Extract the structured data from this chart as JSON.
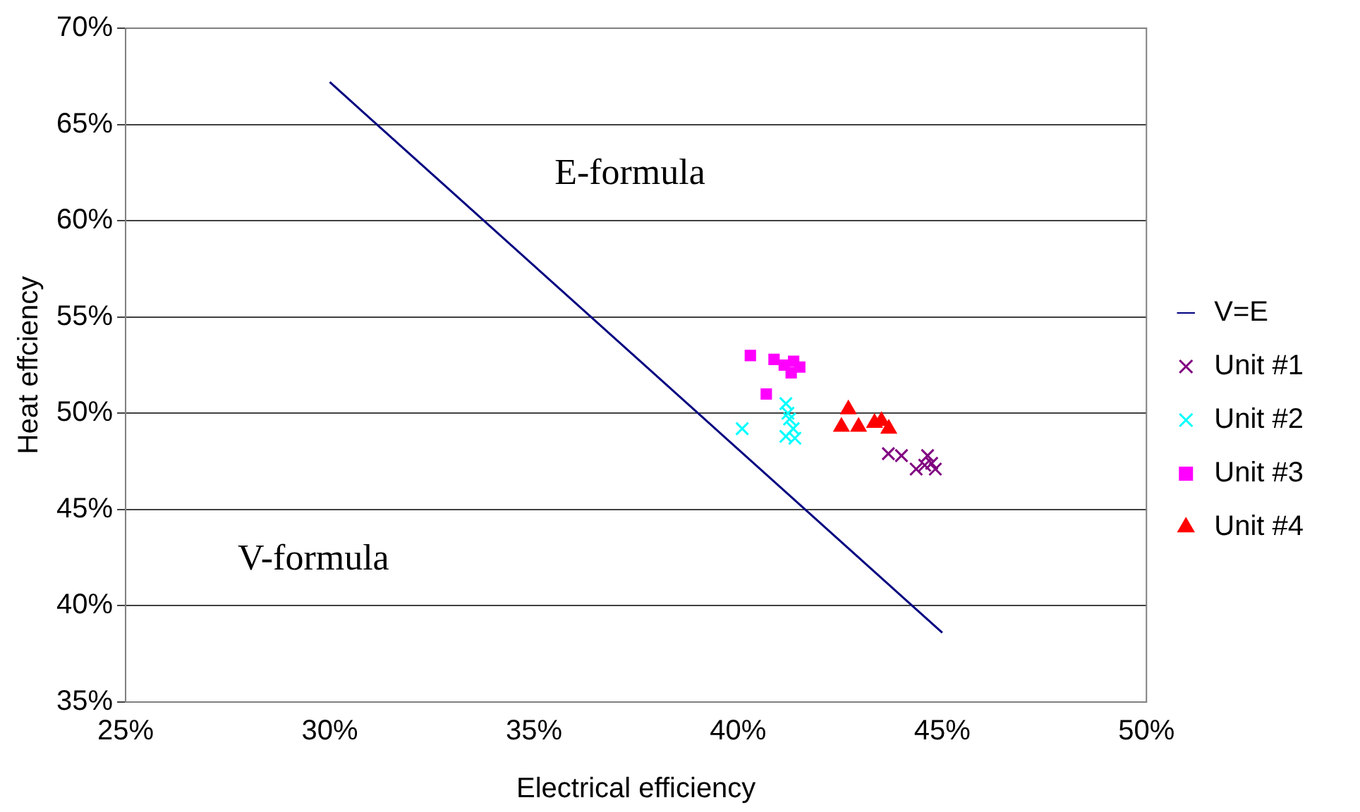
{
  "chart_data": {
    "type": "scatter",
    "xlabel": "Electrical efficiency",
    "ylabel": "Heat effciency",
    "xlim": [
      25,
      50
    ],
    "xticks": [
      {
        "value": 25,
        "label": "25%"
      },
      {
        "value": 30,
        "label": "30%"
      },
      {
        "value": 35,
        "label": "35%"
      },
      {
        "value": 40,
        "label": "40%"
      },
      {
        "value": 45,
        "label": "45%"
      },
      {
        "value": 50,
        "label": "50%"
      }
    ],
    "ylim": [
      35,
      70
    ],
    "yticks": [
      {
        "value": 35,
        "label": "35%"
      },
      {
        "value": 40,
        "label": "40%"
      },
      {
        "value": 45,
        "label": "45%"
      },
      {
        "value": 50,
        "label": "50%"
      },
      {
        "value": 55,
        "label": "55%"
      },
      {
        "value": 60,
        "label": "60%"
      },
      {
        "value": 65,
        "label": "65%"
      },
      {
        "value": 70,
        "label": "70%"
      }
    ],
    "grid": "y",
    "legend": "right",
    "annotations": [
      "E-formula",
      "V-formula"
    ],
    "series": [
      {
        "name": "V=E",
        "type": "line",
        "marker": "none",
        "color": "#000080",
        "x": [
          30,
          45
        ],
        "values": [
          67.2,
          38.6
        ]
      },
      {
        "name": "Unit #1",
        "marker": "cross",
        "color": "#800080",
        "x": [
          43.68,
          44.0,
          44.36,
          44.64,
          44.57,
          44.83,
          44.74
        ],
        "values": [
          47.9,
          47.8,
          47.1,
          47.8,
          47.3,
          47.1,
          47.4
        ]
      },
      {
        "name": "Unit #2",
        "marker": "cross",
        "color": "#00ffff",
        "x": [
          40.1,
          41.17,
          41.22,
          41.26,
          41.35,
          41.17,
          41.39
        ],
        "values": [
          49.2,
          50.5,
          50.0,
          49.7,
          49.2,
          48.8,
          48.7
        ]
      },
      {
        "name": "Unit #3",
        "marker": "square",
        "color": "#ff00ff",
        "x": [
          40.3,
          40.88,
          41.36,
          41.13,
          41.51,
          41.3,
          40.69
        ],
        "values": [
          53.0,
          52.8,
          52.7,
          52.5,
          52.4,
          52.1,
          51.0
        ]
      },
      {
        "name": "Unit #4",
        "marker": "triangle",
        "color": "#ff0000",
        "x": [
          42.7,
          42.53,
          42.95,
          43.34,
          43.51,
          43.69
        ],
        "values": [
          50.2,
          49.3,
          49.3,
          49.5,
          49.6,
          49.2
        ]
      }
    ]
  }
}
